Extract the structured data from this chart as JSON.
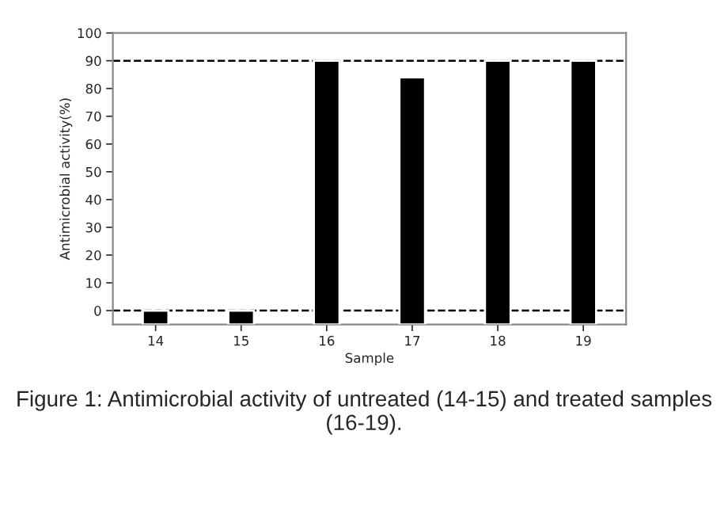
{
  "chart_data": {
    "type": "bar",
    "xlabel": "Sample",
    "ylabel": "Antimicrobial activity(%)",
    "categories": [
      "14",
      "15",
      "16",
      "17",
      "18",
      "19"
    ],
    "values": [
      5,
      5,
      95,
      89,
      95,
      95
    ],
    "base": [
      -5,
      -5,
      -5,
      -5,
      -5,
      -5
    ],
    "color": "#000000",
    "ylim": [
      -5,
      100
    ],
    "yticks": [
      0,
      10,
      20,
      30,
      40,
      50,
      60,
      70,
      80,
      90,
      100
    ],
    "ref_lines": [
      {
        "axis": "y",
        "value": 90,
        "label": null,
        "color": "#000000",
        "line_style": "dashed"
      },
      {
        "axis": "y",
        "value": 0,
        "label": null,
        "color": "#000000",
        "line_style": "dashed"
      }
    ],
    "grid": false,
    "legend": false,
    "annotations": [
      "Figure 1: Antimicrobial activity of untreated (14-15) and treated samples (16-19)."
    ]
  }
}
